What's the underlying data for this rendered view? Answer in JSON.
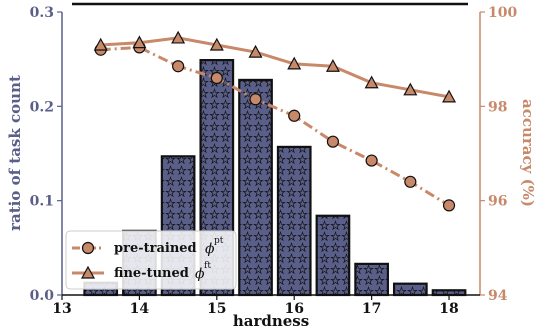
{
  "chart_data": {
    "type": "bar+line",
    "title": "",
    "xlabel": "hardness",
    "ylabel_left": "ratio of task count",
    "ylabel_right": "accuracy (%)",
    "xlim": [
      13,
      18.4
    ],
    "ylim_left": [
      0,
      0.3
    ],
    "ylim_right": [
      94,
      100
    ],
    "x_ticks": [
      "13",
      "14",
      "15",
      "16",
      "17",
      "18"
    ],
    "y_ticks_left": [
      "0.0",
      "0.1",
      "0.2",
      "0.3"
    ],
    "y_ticks_right": [
      "94",
      "96",
      "98",
      "100"
    ],
    "bars": {
      "x": [
        13.5,
        14.0,
        14.5,
        15.0,
        15.5,
        16.0,
        16.5,
        17.0,
        17.5,
        18.0
      ],
      "values": [
        0.013,
        0.068,
        0.147,
        0.249,
        0.228,
        0.157,
        0.084,
        0.033,
        0.012,
        0.005
      ],
      "width": 0.42,
      "color": "#5a5f8a",
      "pattern": "stars"
    },
    "series": [
      {
        "legend": "pre-trained",
        "symbol": "ϕ",
        "superscript": "pt",
        "marker": "circle",
        "line_style": "dashdot",
        "color": "#c8896a",
        "x": [
          13.5,
          14.0,
          14.5,
          15.0,
          15.5,
          16.0,
          16.5,
          17.0,
          17.5,
          18.0
        ],
        "values": [
          99.2,
          99.25,
          98.85,
          98.6,
          98.15,
          97.8,
          97.25,
          96.85,
          96.4,
          95.9
        ]
      },
      {
        "legend": "fine-tuned",
        "symbol": "ϕ",
        "superscript": "ft",
        "marker": "triangle",
        "line_style": "solid",
        "color": "#c8896a",
        "x": [
          13.5,
          14.0,
          14.5,
          15.0,
          15.5,
          16.0,
          16.5,
          17.0,
          17.5,
          18.0
        ],
        "values": [
          99.3,
          99.35,
          99.45,
          99.3,
          99.15,
          98.9,
          98.85,
          98.5,
          98.35,
          98.2
        ]
      }
    ],
    "legend_position": "lower-left",
    "grid": false
  }
}
